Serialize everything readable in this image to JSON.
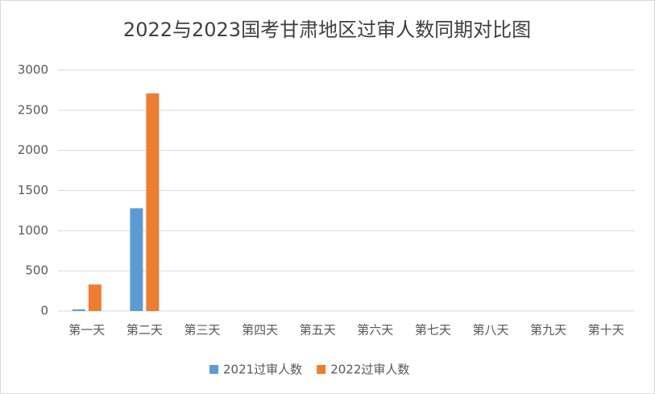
{
  "chart_data": {
    "type": "bar",
    "title": "2022与2023国考甘肃地区过审人数同期对比图",
    "categories": [
      "第一天",
      "第二天",
      "第三天",
      "第四天",
      "第五天",
      "第六天",
      "第七天",
      "第八天",
      "第九天",
      "第十天"
    ],
    "series": [
      {
        "name": "2021过审人数",
        "color": "#5b9bd5",
        "values": [
          20,
          1280,
          null,
          null,
          null,
          null,
          null,
          null,
          null,
          null
        ]
      },
      {
        "name": "2022过审人数",
        "color": "#ed7d31",
        "values": [
          330,
          2710,
          null,
          null,
          null,
          null,
          null,
          null,
          null,
          null
        ]
      }
    ],
    "ylim": [
      0,
      3000
    ],
    "yticks": [
      0,
      500,
      1000,
      1500,
      2000,
      2500,
      3000
    ],
    "grid": true,
    "legend": "bottom"
  }
}
